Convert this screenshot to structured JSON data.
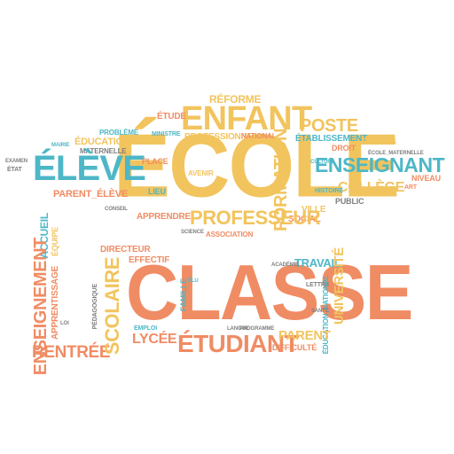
{
  "palette": {
    "orange": "#F08C64",
    "yellow": "#F2C45E",
    "teal": "#4DB7C7",
    "gray": "#7F7F7F"
  },
  "words": {
    "ecole": "ÉCOLE",
    "classe": "CLASSE",
    "enfant": "ENFANT",
    "eleve": "ÉLÈVE",
    "enseignant": "ENSEIGNANT",
    "professeur": "PROFESSEUR",
    "etudiant": "ÉTUDIANT",
    "scolaire": "SCOLAIRE",
    "lycee": "LYCÉE",
    "enseignement": "ENSEIGNEMENT",
    "rentree": "RENTRÉE",
    "college": "COLLÈGE",
    "formation": "FORMATION",
    "poste": "POSTE",
    "parent": "PARENT",
    "universite": "UNIVERSITÉ",
    "travail": "TRAVAIL",
    "reforme": "RÉFORME",
    "etude": "ÉTUDE",
    "education": "ÉDUCATION",
    "maternelle": "MATERNELLE",
    "probleme": "PROBLÈME",
    "etablissement": "ÉTABLISSEMENT",
    "professionnel": "PROFESSIONNEL",
    "national": "NATIONAL",
    "cours": "COURS",
    "niveau": "NIVEAU",
    "public": "PUBLIC",
    "ville": "VILLE",
    "social": "SOCIAL",
    "histoire": "HISTOIRE",
    "apprendre": "APPRENDRE",
    "association": "ASSOCIATION",
    "avenir": "AVENIR",
    "lieu": "LIEU",
    "place": "PLACE",
    "parent_eleve": "PARENT_ÉLÈVE",
    "accueil": "ACCUEIL",
    "equipe": "ÉQUIPE",
    "apprentissage": "APPRENTISSAGE",
    "directeur": "DIRECTEUR",
    "effectif": "EFFECTIF",
    "education_national": "ÉDUCATION_NATIONAL",
    "difficulte": "DIFFICULTÉ",
    "droit": "DROIT",
    "emploi": "EMPLOI",
    "pedagogique": "PÉDAGOGIQUE",
    "famille": "FAMILLE",
    "lettre": "LETTRE",
    "ministre": "MINISTRE",
    "academie": "ACADÉMIE",
    "etat": "ÉTAT",
    "culture": "CULTURE",
    "conseil": "CONSEIL",
    "science": "SCIENCE",
    "art": "ART",
    "mairie": "MAIRIE",
    "examen": "EXAMEN",
    "programme": "PROGRAMME",
    "langue": "LANGUE",
    "sante": "SANTÉ",
    "ecole_maternelle": "ÉCOLE_MATERNELLE",
    "loi": "LOI",
    "elu": "ÉLU"
  }
}
